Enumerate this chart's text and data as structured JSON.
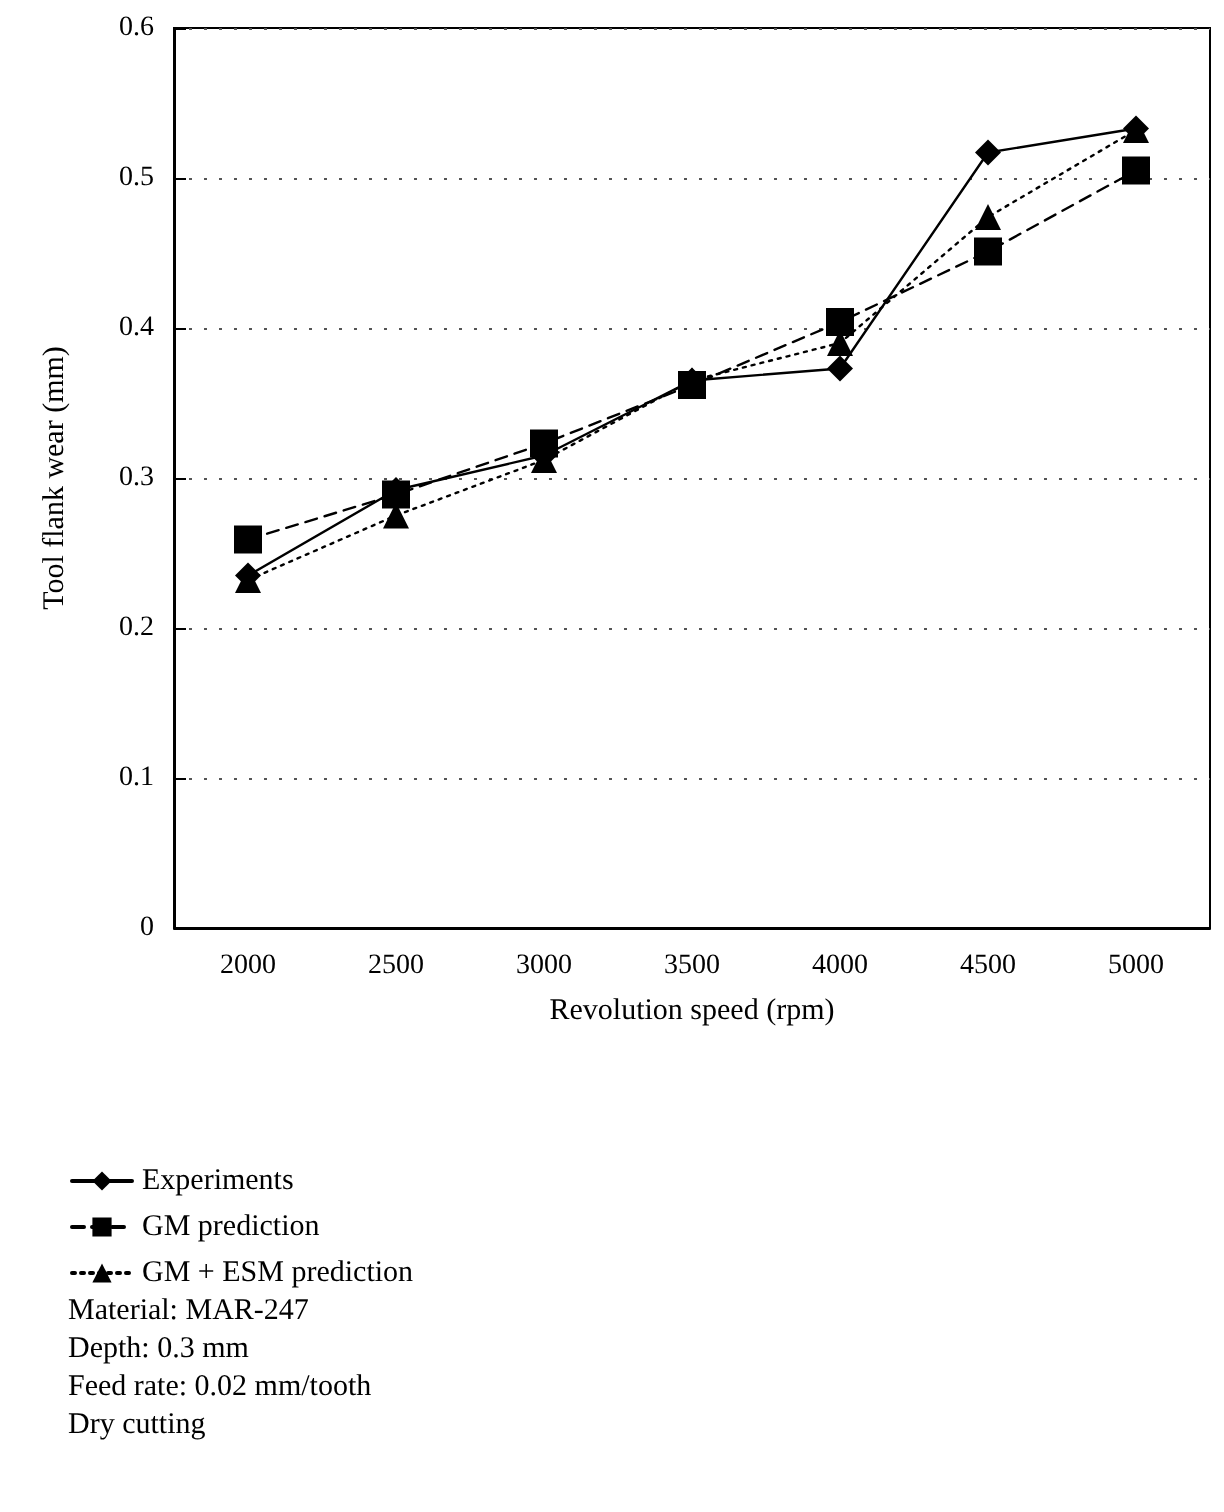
{
  "chart_data": {
    "type": "line",
    "xlabel": "Revolution speed (rpm)",
    "ylabel": "Tool flank wear (mm)",
    "categories": [
      "2000",
      "2500",
      "3000",
      "3500",
      "4000",
      "4500",
      "5000"
    ],
    "series": [
      {
        "name": "Experiments",
        "color": "#000000",
        "marker": "diamond",
        "line_style": "solid",
        "values": [
          0.235,
          0.292,
          0.315,
          0.365,
          0.373,
          0.517,
          0.533
        ]
      },
      {
        "name": "GM prediction",
        "color": "#000000",
        "marker": "square",
        "line_style": "dashed",
        "values": [
          0.259,
          0.289,
          0.323,
          0.362,
          0.404,
          0.451,
          0.505
        ]
      },
      {
        "name": "GM + ESM prediction",
        "color": "#000000",
        "marker": "triangle",
        "line_style": "dotted",
        "values": [
          0.232,
          0.275,
          0.312,
          0.365,
          0.39,
          0.474,
          0.532
        ]
      }
    ],
    "ylim": [
      0,
      0.6
    ],
    "yticks": [
      0,
      0.1,
      0.2,
      0.3,
      0.4,
      0.5,
      0.6
    ],
    "grid": "y",
    "legend": "bottom left",
    "annotations": [
      "Material: MAR-247",
      "Depth: 0.3 mm",
      "Feed rate: 0.02 mm/tooth",
      "Dry cutting"
    ]
  }
}
